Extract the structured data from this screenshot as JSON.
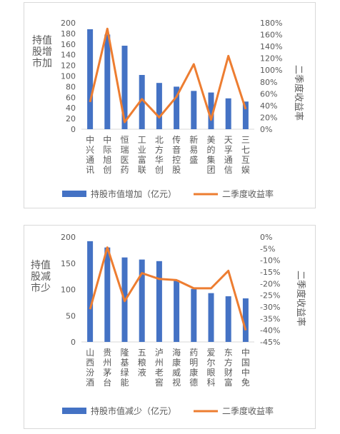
{
  "chart_data": [
    {
      "type": "bar",
      "categories": [
        "中兴通讯",
        "中际旭创",
        "恒瑞医药",
        "工业富联",
        "北方华创",
        "传音控股",
        "新易盛",
        "美的集团",
        "天孚通信",
        "三七互娱"
      ],
      "series": [
        {
          "name": "持股市值增加（亿元）",
          "type": "bar",
          "axis": "left",
          "values": [
            188,
            178,
            157,
            102,
            87,
            80,
            72,
            69,
            58,
            52
          ]
        },
        {
          "name": "二季度收益率",
          "type": "line",
          "axis": "right",
          "values": [
            0.46,
            1.7,
            0.12,
            0.51,
            0.2,
            0.55,
            1.1,
            0.16,
            1.24,
            0.34
          ]
        }
      ],
      "ylabel": "持股市值增加",
      "y2label": "二季度收益率",
      "ylim": [
        0,
        200
      ],
      "y_ticks": [
        0,
        20,
        40,
        60,
        80,
        100,
        120,
        140,
        160,
        180,
        200
      ],
      "y2lim": [
        0,
        1.8
      ],
      "y2_ticks": [
        "0%",
        "20%",
        "40%",
        "60%",
        "80%",
        "100%",
        "120%",
        "140%",
        "160%",
        "180%"
      ],
      "legend_position": "bottom",
      "colors": {
        "bar": "#4472C4",
        "line": "#ED7D31"
      }
    },
    {
      "type": "bar",
      "categories": [
        "山西汾酒",
        "贵州茅台",
        "隆基绿能",
        "五粮液",
        "泸州老窖",
        "海康威视",
        "药明康德",
        "爱尔眼科",
        "东方财富",
        "中国中免"
      ],
      "series": [
        {
          "name": "持股市值减少（亿元）",
          "type": "bar",
          "axis": "left",
          "values": [
            192,
            180,
            161,
            157,
            154,
            118,
            101,
            93,
            87,
            83
          ]
        },
        {
          "name": "二季度收益率",
          "type": "line",
          "axis": "right",
          "values": [
            -0.31,
            -0.045,
            -0.275,
            -0.155,
            -0.18,
            -0.185,
            -0.22,
            -0.22,
            -0.145,
            -0.4
          ]
        }
      ],
      "ylabel": "持股市值减少",
      "y2label": "二季度收益率",
      "ylim": [
        0,
        200
      ],
      "y_ticks": [
        0,
        50,
        100,
        150,
        200
      ],
      "y2lim": [
        -0.45,
        0
      ],
      "y2_ticks": [
        "0%",
        "-5%",
        "-10%",
        "-15%",
        "-20%",
        "-25%",
        "-30%",
        "-35%",
        "-40%",
        "-45%"
      ],
      "legend_position": "bottom",
      "colors": {
        "bar": "#4472C4",
        "line": "#ED7D31"
      }
    }
  ]
}
